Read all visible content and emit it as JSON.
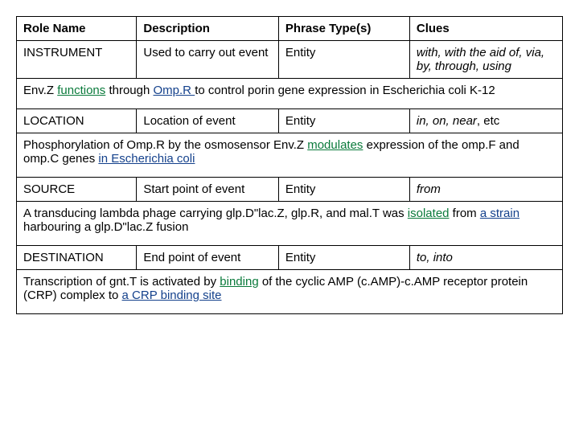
{
  "headers": {
    "role": "Role Name",
    "desc": "Description",
    "phrase": "Phrase Type(s)",
    "clues": "Clues"
  },
  "rows": [
    {
      "role": "INSTRUMENT",
      "desc": "Used to carry out event",
      "phrase": "Entity",
      "clues": "with, with the aid of, via, by, through, using",
      "example": {
        "pre": "Env.Z ",
        "func": "functions",
        "mid1": " through ",
        "arg1": "Omp.R ",
        "post": "to control porin gene expression in Escherichia coli K-12"
      }
    },
    {
      "role": "LOCATION",
      "desc": "Location of event",
      "phrase": "Entity",
      "clues": "in, on, near",
      "clues_suffix": ", etc",
      "example": {
        "pre": "Phosphorylation of Omp.R by the osmosensor Env.Z ",
        "func": "modulates",
        "mid1": " expression of the omp.F and omp.C genes ",
        "arg1": "in Escherichia coli",
        "post": ""
      }
    },
    {
      "role": "SOURCE",
      "desc": "Start point of event",
      "phrase": "Entity",
      "clues": "from",
      "example": {
        "pre": "A transducing lambda phage carrying glp.D\"lac.Z, glp.R, and mal.T was ",
        "func": "isolated",
        "mid1": " from ",
        "arg1": "a strain",
        "post": " harbouring a glp.D\"lac.Z fusion"
      }
    },
    {
      "role": "DESTINATION",
      "desc": "End point of event",
      "phrase": "Entity",
      "clues": "to, into",
      "example": {
        "pre": "Transcription of gnt.T is activated by ",
        "func": "binding",
        "mid1": " of the cyclic AMP (c.AMP)-c.AMP receptor protein (CRP) complex to ",
        "arg1": "a CRP binding site",
        "post": ""
      }
    }
  ]
}
